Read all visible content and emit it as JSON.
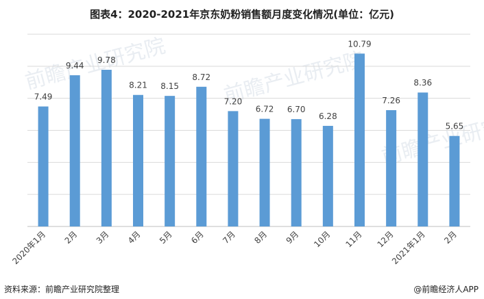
{
  "title": "图表4：2020-2021年京东奶粉销售额月度变化情况(单位：亿元)",
  "source": "资料来源：前瞻产业研究院整理",
  "watermark_brand": "前瞻产业研究院",
  "footer_watermark": "@前瞻经济人APP",
  "colors": {
    "bar": "#5b9bd5",
    "grid": "#d9d9d9",
    "axis": "#bfbfbf",
    "text": "#404040"
  },
  "chart_data": {
    "type": "bar",
    "categories": [
      "2020年1月",
      "2月",
      "3月",
      "4月",
      "5月",
      "6月",
      "7月",
      "8月",
      "9月",
      "10月",
      "11月",
      "12月",
      "2021年1月",
      "2月"
    ],
    "values": [
      7.49,
      9.44,
      9.78,
      8.21,
      8.15,
      8.72,
      7.2,
      6.72,
      6.7,
      6.28,
      10.79,
      7.26,
      8.36,
      5.65
    ],
    "value_labels": [
      "7.49",
      "9.44",
      "9.78",
      "8.21",
      "8.15",
      "8.72",
      "7.20",
      "6.72",
      "6.70",
      "6.28",
      "10.79",
      "7.26",
      "8.36",
      "5.65"
    ],
    "ylim": [
      0,
      12
    ],
    "grid": true
  }
}
